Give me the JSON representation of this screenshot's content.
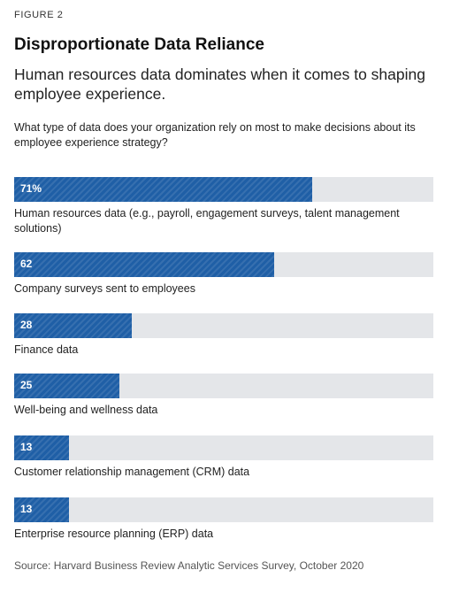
{
  "figure_label": "FIGURE 2",
  "title": "Disproportionate Data Reliance",
  "subtitle": "Human resources data dominates when it comes to shaping employee experience.",
  "question": "What type of data does your organization rely on most to make decisions about its employee experience strategy?",
  "source": "Source: Harvard Business Review Analytic Services Survey, October 2020",
  "colors": {
    "bar": "#1f5fa6",
    "track": "#e4e6e9"
  },
  "chart_data": {
    "type": "bar",
    "orientation": "horizontal",
    "xlim": [
      0,
      100
    ],
    "categories": [
      "Human resources data (e.g., payroll, engagement surveys, talent management solutions)",
      "Company surveys sent to employees",
      "Finance data",
      "Well-being and wellness data",
      "Customer relationship management (CRM) data",
      "Enterprise resource planning (ERP) data"
    ],
    "values": [
      71,
      62,
      28,
      25,
      13,
      13
    ],
    "value_labels": [
      "71%",
      "62",
      "28",
      "25",
      "13",
      "13"
    ]
  }
}
